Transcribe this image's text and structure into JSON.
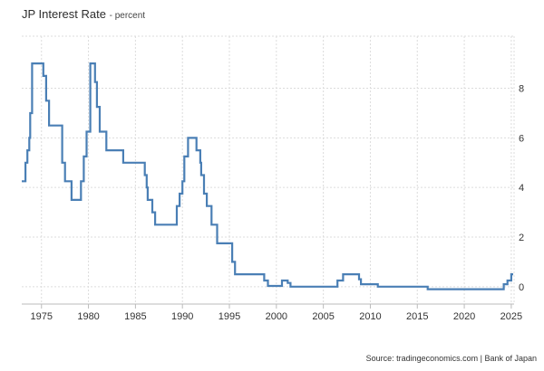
{
  "header": {
    "title": "JP Interest Rate",
    "subtitle": "- percent"
  },
  "source": "Source: tradingeconomics.com | Bank of Japan",
  "chart_data": {
    "type": "line",
    "step": true,
    "title": "JP Interest Rate",
    "xlabel": "",
    "ylabel": "",
    "xlim": [
      1972.9,
      2025.3
    ],
    "ylim": [
      -0.7,
      10.1
    ],
    "x_ticks": [
      1975,
      1980,
      1985,
      1990,
      1995,
      2000,
      2005,
      2010,
      2015,
      2020,
      2025
    ],
    "y_ticks": [
      0,
      2,
      4,
      6,
      8
    ],
    "grid": true,
    "legend": "none",
    "color": "#4a7fb5",
    "series": [
      {
        "points": [
          [
            1972.9,
            4.25
          ],
          [
            1973.3,
            5.0
          ],
          [
            1973.5,
            5.5
          ],
          [
            1973.7,
            6.0
          ],
          [
            1973.8,
            7.0
          ],
          [
            1974.0,
            9.0
          ],
          [
            1975.2,
            8.5
          ],
          [
            1975.5,
            7.5
          ],
          [
            1975.8,
            6.5
          ],
          [
            1977.2,
            5.0
          ],
          [
            1977.5,
            4.25
          ],
          [
            1978.2,
            3.5
          ],
          [
            1979.2,
            4.25
          ],
          [
            1979.5,
            5.25
          ],
          [
            1979.8,
            6.25
          ],
          [
            1980.2,
            9.0
          ],
          [
            1980.7,
            8.25
          ],
          [
            1980.9,
            7.25
          ],
          [
            1981.2,
            6.25
          ],
          [
            1981.9,
            5.5
          ],
          [
            1983.7,
            5.0
          ],
          [
            1986.0,
            4.5
          ],
          [
            1986.2,
            4.0
          ],
          [
            1986.3,
            3.5
          ],
          [
            1986.8,
            3.0
          ],
          [
            1987.1,
            2.5
          ],
          [
            1989.4,
            3.25
          ],
          [
            1989.7,
            3.75
          ],
          [
            1990.0,
            4.25
          ],
          [
            1990.2,
            5.25
          ],
          [
            1990.6,
            6.0
          ],
          [
            1991.5,
            5.5
          ],
          [
            1991.9,
            5.0
          ],
          [
            1992.0,
            4.5
          ],
          [
            1992.3,
            3.75
          ],
          [
            1992.6,
            3.25
          ],
          [
            1993.1,
            2.5
          ],
          [
            1993.7,
            1.75
          ],
          [
            1995.3,
            1.0
          ],
          [
            1995.6,
            0.5
          ],
          [
            1998.7,
            0.25
          ],
          [
            1999.1,
            0.03
          ],
          [
            2000.6,
            0.25
          ],
          [
            2001.2,
            0.15
          ],
          [
            2001.5,
            0.0
          ],
          [
            2006.5,
            0.25
          ],
          [
            2007.1,
            0.5
          ],
          [
            2008.8,
            0.3
          ],
          [
            2009.0,
            0.1
          ],
          [
            2010.8,
            0.0
          ],
          [
            2016.1,
            -0.1
          ],
          [
            2024.2,
            0.1
          ],
          [
            2024.6,
            0.25
          ],
          [
            2025.0,
            0.5
          ],
          [
            2025.2,
            0.5
          ]
        ]
      }
    ]
  }
}
